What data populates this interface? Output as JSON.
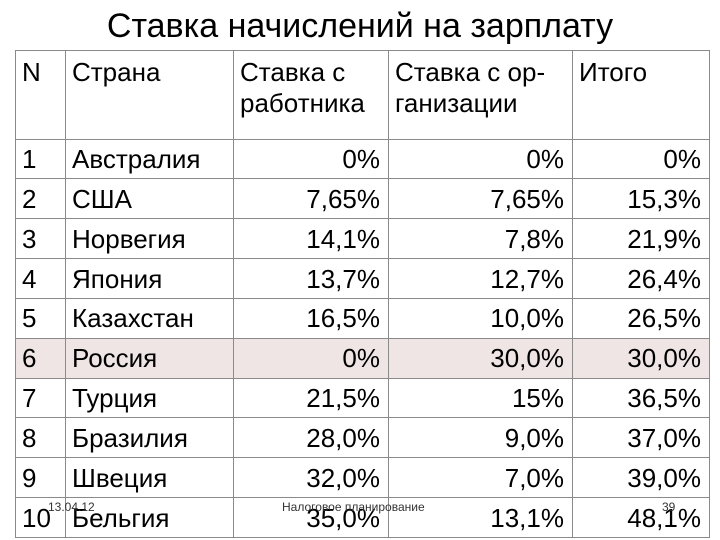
{
  "title": "Ставка начислений на зарплату",
  "headers": {
    "n": "N",
    "country": "Страна",
    "employee": [
      "Ставка с",
      "работника"
    ],
    "employer": [
      "Ставка с ор-",
      "ганизации"
    ],
    "total": "Итого"
  },
  "rows": [
    {
      "n": "1",
      "country": "Австралия",
      "employee": "0%",
      "employer": "0%",
      "total": "0%"
    },
    {
      "n": "2",
      "country": "США",
      "employee": "7,65%",
      "employer": "7,65%",
      "total": "15,3%"
    },
    {
      "n": "3",
      "country": "Норвегия",
      "employee": "14,1%",
      "employer": "7,8%",
      "total": "21,9%"
    },
    {
      "n": "4",
      "country": "Япония",
      "employee": "13,7%",
      "employer": "12,7%",
      "total": "26,4%"
    },
    {
      "n": "5",
      "country": "Казахстан",
      "employee": "16,5%",
      "employer": "10,0%",
      "total": "26,5%"
    },
    {
      "n": "6",
      "country": "Россия",
      "employee": "0%",
      "employer": "30,0%",
      "total": "30,0%"
    },
    {
      "n": "7",
      "country": "Турция",
      "employee": "21,5%",
      "employer": "15%",
      "total": "36,5%"
    },
    {
      "n": "8",
      "country": "Бразилия",
      "employee": "28,0%",
      "employer": "9,0%",
      "total": "37,0%"
    },
    {
      "n": "9",
      "country": "Швеция",
      "employee": "32,0%",
      "employer": "7,0%",
      "total": "39,0%"
    },
    {
      "n": "10",
      "country": "Бельгия",
      "employee": "35,0%",
      "employer": "13,1%",
      "total": "48,1%"
    }
  ],
  "footer": {
    "date": "13.04.12",
    "center": "Налоговое планирование",
    "page": "39"
  },
  "colors": {
    "highlight_row": "#efe5e5",
    "border": "#8a8a8a"
  }
}
